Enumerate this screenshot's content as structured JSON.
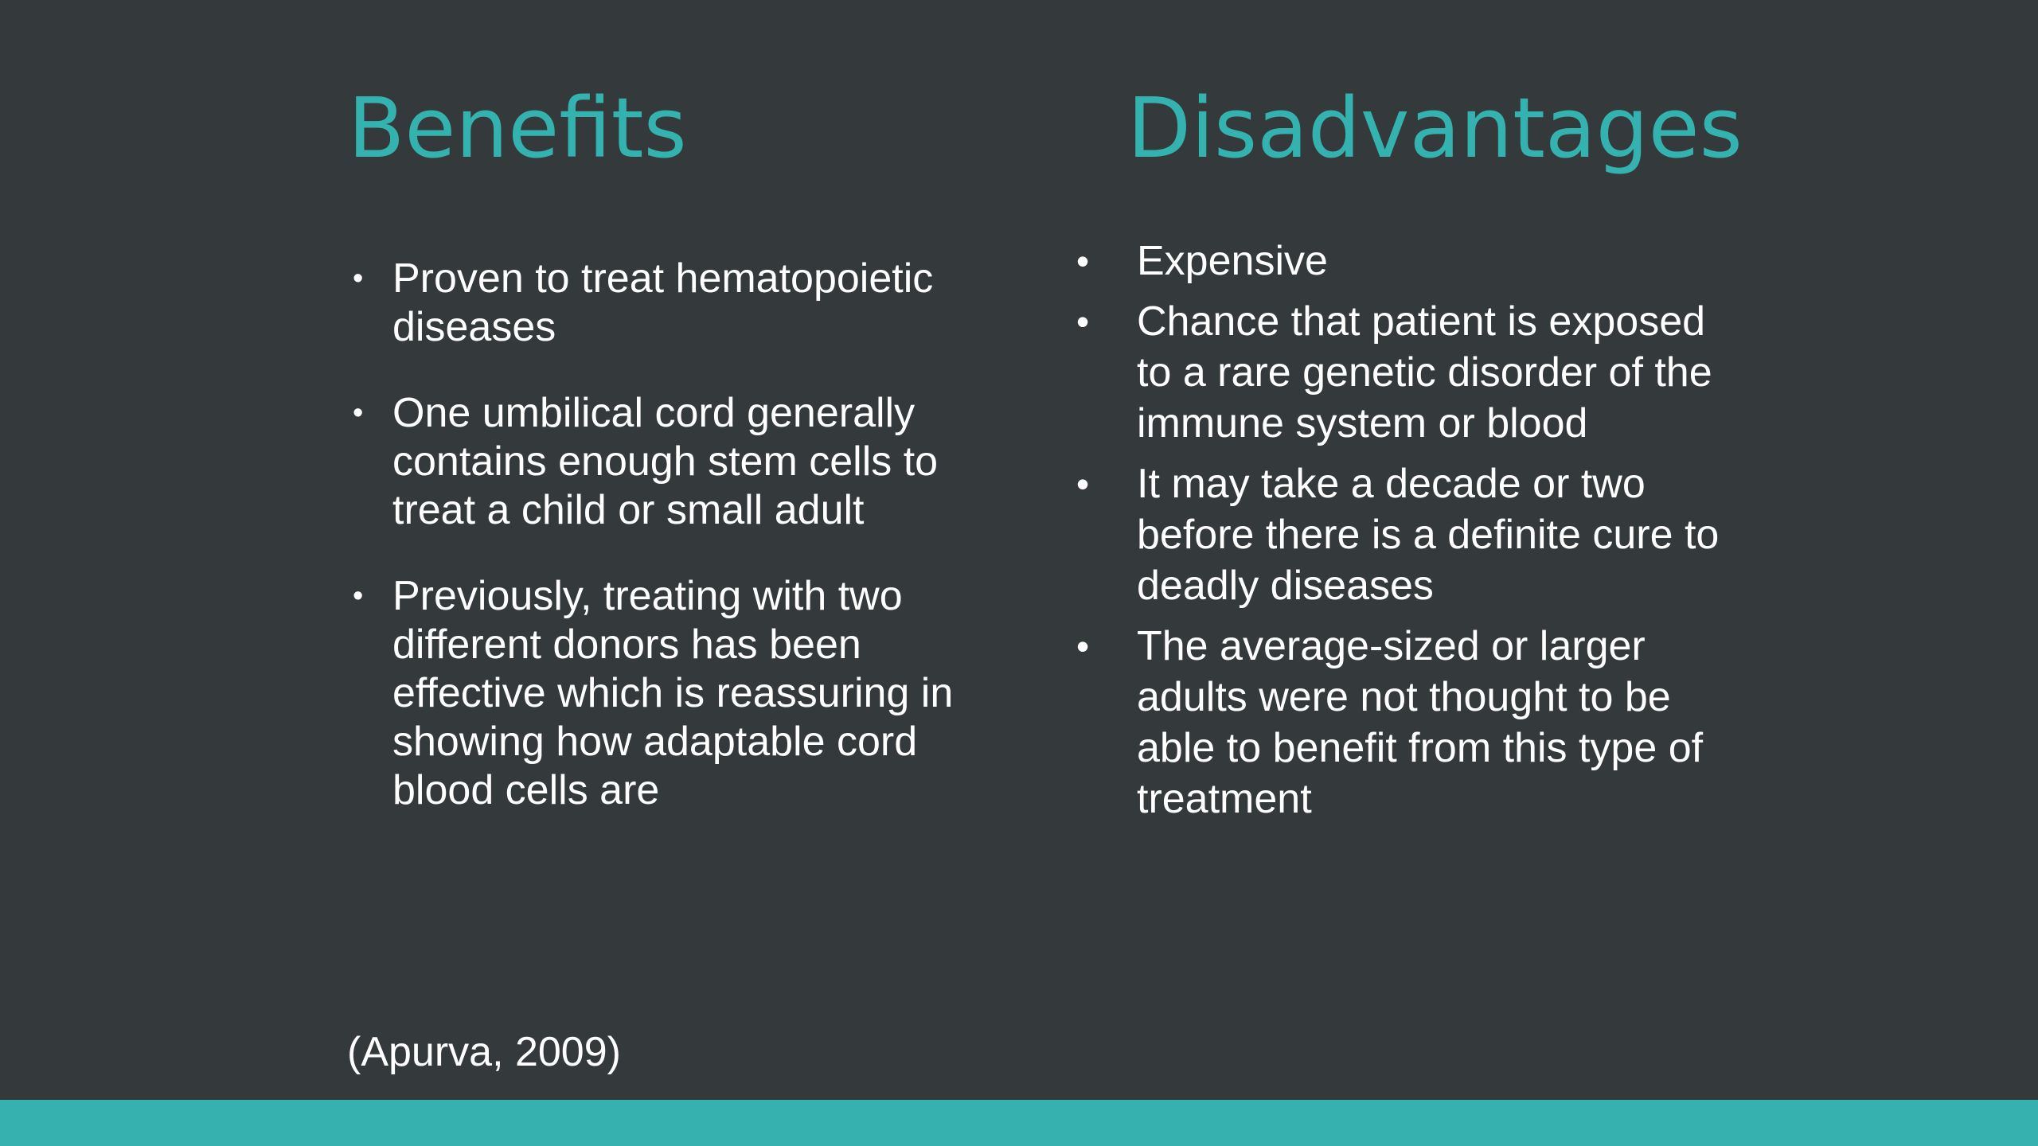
{
  "slide": {
    "benefits": {
      "title": "Benefits",
      "items": [
        "Proven to treat hematopoietic diseases",
        "One umbilical cord generally contains enough stem cells to treat a child or small adult",
        "Previously, treating with two different donors has been effective which is reassuring in showing how adaptable cord blood cells are"
      ]
    },
    "disadvantages": {
      "title": "Disadvantages",
      "items": [
        "Expensive",
        "Chance that patient is exposed to a rare genetic disorder of the immune system or blood",
        "It may take a decade or two before there is a definite cure to deadly diseases",
        "The average-sized or larger adults were not thought to be able to benefit from this type of treatment"
      ]
    },
    "citation": "(Apurva, 2009)",
    "bullet_glyph": "•",
    "colors": {
      "background": "#343a3c",
      "heading": "#34b2b0",
      "text": "#ffffff",
      "footer_bar": "#37b1af"
    }
  }
}
